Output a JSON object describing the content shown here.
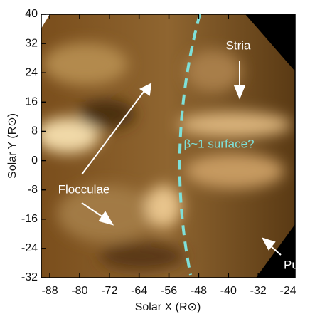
{
  "chart_data": {
    "type": "image",
    "xlabel": "Solar X (R⊙)",
    "ylabel": "Solar Y (R⊙)",
    "xlim": [
      -90.3,
      -22.1
    ],
    "ylim": [
      -32,
      40
    ],
    "xticks": [
      -88,
      -80,
      -72,
      -64,
      -56,
      -48,
      -40,
      -32,
      -24
    ],
    "yticks": [
      40,
      32,
      24,
      16,
      8,
      0,
      -8,
      -16,
      -24,
      -32
    ],
    "annotations": [
      "Stria",
      "β~1 surface?",
      "Flocculae",
      "Puff"
    ]
  }
}
